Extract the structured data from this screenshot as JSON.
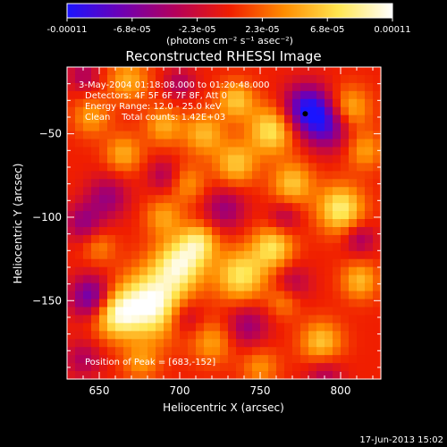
{
  "colorbar": {
    "tick_labels": [
      "-0.00011",
      "-6.8e-05",
      "-2.3e-05",
      "2.3e-05",
      "6.8e-05",
      "0.00011"
    ],
    "unit_label": "(photons cm⁻² s⁻¹ asec⁻²)",
    "range": [
      -0.00011,
      0.00011
    ],
    "colormap": [
      "#1a14ff",
      "#6e00b4",
      "#b4005a",
      "#f01e00",
      "#ff8c00",
      "#ffe650",
      "#ffffff"
    ]
  },
  "chart_data": {
    "type": "heatmap",
    "title": "Reconstructed RHESSI Image",
    "xlabel": "Heliocentric X (arcsec)",
    "ylabel": "Heliocentric Y (arcsec)",
    "xlim": [
      630,
      825
    ],
    "ylim": [
      -197,
      -10
    ],
    "x_ticks": [
      650,
      700,
      750,
      800
    ],
    "y_ticks": [
      -50,
      -100,
      -150
    ],
    "info_lines": [
      "3-May-2004 01:18:08.000 to 01:20:48.000",
      "Detectors: 4F 5F 6F 7F 8F, Att 0",
      "Energy Range: 12.0 - 25.0 keV",
      "Clean    Total counts: 1.42E+03"
    ],
    "peak_text": "Position of Peak = [683,-152]",
    "marker": {
      "x": 778,
      "y": -38
    },
    "blobs": [
      {
        "x": 683,
        "y": -152,
        "a": 1.0,
        "s": 14
      },
      {
        "x": 660,
        "y": -158,
        "a": 0.75,
        "s": 10
      },
      {
        "x": 700,
        "y": -128,
        "a": 0.8,
        "s": 11
      },
      {
        "x": 712,
        "y": -115,
        "a": 0.6,
        "s": 8
      },
      {
        "x": 738,
        "y": -135,
        "a": 0.7,
        "s": 11
      },
      {
        "x": 758,
        "y": -118,
        "a": 0.65,
        "s": 9
      },
      {
        "x": 770,
        "y": -80,
        "a": 0.55,
        "s": 9
      },
      {
        "x": 800,
        "y": -95,
        "a": 0.75,
        "s": 10
      },
      {
        "x": 812,
        "y": -138,
        "a": 0.5,
        "s": 8
      },
      {
        "x": 788,
        "y": -175,
        "a": 0.55,
        "s": 9
      },
      {
        "x": 765,
        "y": -150,
        "a": 0.35,
        "s": 7
      },
      {
        "x": 705,
        "y": -80,
        "a": 0.35,
        "s": 8
      },
      {
        "x": 735,
        "y": -68,
        "a": 0.55,
        "s": 9
      },
      {
        "x": 757,
        "y": -48,
        "a": 0.7,
        "s": 10
      },
      {
        "x": 715,
        "y": -50,
        "a": 0.5,
        "s": 9
      },
      {
        "x": 735,
        "y": -30,
        "a": 0.55,
        "s": 8
      },
      {
        "x": 668,
        "y": -18,
        "a": 0.45,
        "s": 9
      },
      {
        "x": 645,
        "y": -40,
        "a": 0.4,
        "s": 8
      },
      {
        "x": 665,
        "y": -62,
        "a": 0.45,
        "s": 8
      },
      {
        "x": 690,
        "y": -45,
        "a": 0.45,
        "s": 8
      },
      {
        "x": 805,
        "y": -35,
        "a": 0.55,
        "s": 9
      },
      {
        "x": 815,
        "y": -60,
        "a": 0.4,
        "s": 8
      },
      {
        "x": 690,
        "y": -100,
        "a": 0.4,
        "s": 8
      },
      {
        "x": 650,
        "y": -118,
        "a": 0.3,
        "s": 7
      },
      {
        "x": 720,
        "y": -175,
        "a": 0.4,
        "s": 9
      },
      {
        "x": 750,
        "y": -190,
        "a": 0.35,
        "s": 8
      },
      {
        "x": 676,
        "y": -187,
        "a": 0.35,
        "s": 8
      },
      {
        "x": 779,
        "y": -35,
        "a": -0.9,
        "s": 10
      },
      {
        "x": 792,
        "y": -45,
        "a": -0.7,
        "s": 10
      },
      {
        "x": 645,
        "y": -148,
        "a": -0.75,
        "s": 9
      },
      {
        "x": 640,
        "y": -103,
        "a": -0.45,
        "s": 8
      },
      {
        "x": 655,
        "y": -88,
        "a": -0.45,
        "s": 9
      },
      {
        "x": 728,
        "y": -95,
        "a": -0.45,
        "s": 9
      },
      {
        "x": 703,
        "y": -160,
        "a": -0.4,
        "s": 8
      },
      {
        "x": 742,
        "y": -165,
        "a": -0.45,
        "s": 9
      },
      {
        "x": 770,
        "y": -140,
        "a": -0.35,
        "s": 8
      },
      {
        "x": 812,
        "y": -113,
        "a": -0.4,
        "s": 7
      },
      {
        "x": 765,
        "y": -100,
        "a": -0.35,
        "s": 7
      },
      {
        "x": 690,
        "y": -75,
        "a": -0.35,
        "s": 7
      },
      {
        "x": 640,
        "y": -15,
        "a": -0.35,
        "s": 7
      },
      {
        "x": 700,
        "y": -20,
        "a": -0.35,
        "s": 7
      },
      {
        "x": 790,
        "y": -195,
        "a": -0.35,
        "s": 8
      },
      {
        "x": 640,
        "y": -185,
        "a": -0.35,
        "s": 8
      }
    ]
  },
  "footer": {
    "timestamp": "17-Jun-2013 15:02"
  }
}
